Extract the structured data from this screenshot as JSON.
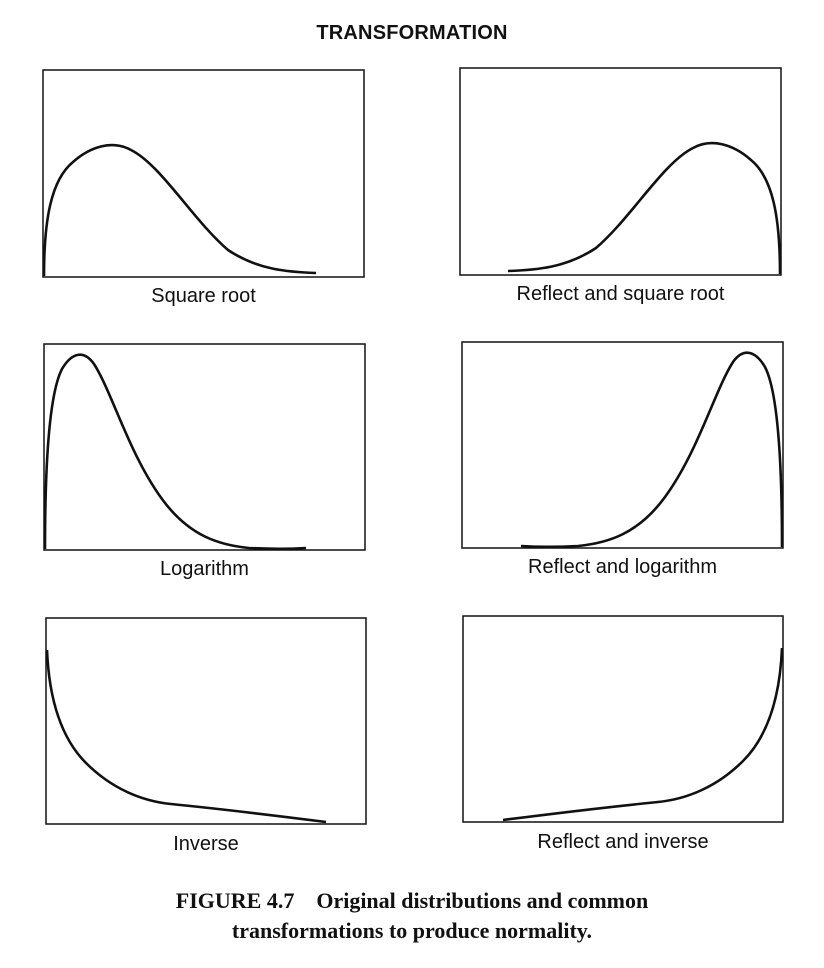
{
  "header": {
    "title": "TRANSFORMATION"
  },
  "panels": [
    {
      "id": "square-root",
      "label": "Square root"
    },
    {
      "id": "reflect-square-root",
      "label": "Reflect and square root"
    },
    {
      "id": "logarithm",
      "label": "Logarithm"
    },
    {
      "id": "reflect-logarithm",
      "label": "Reflect and logarithm"
    },
    {
      "id": "inverse",
      "label": "Inverse"
    },
    {
      "id": "reflect-inverse",
      "label": "Reflect and inverse"
    }
  ],
  "caption": {
    "figure_number": "FIGURE 4.7",
    "line1": "Original distributions and common",
    "line2": "transformations to produce normality."
  },
  "colors": {
    "ink": "#111111",
    "background": "#ffffff"
  }
}
